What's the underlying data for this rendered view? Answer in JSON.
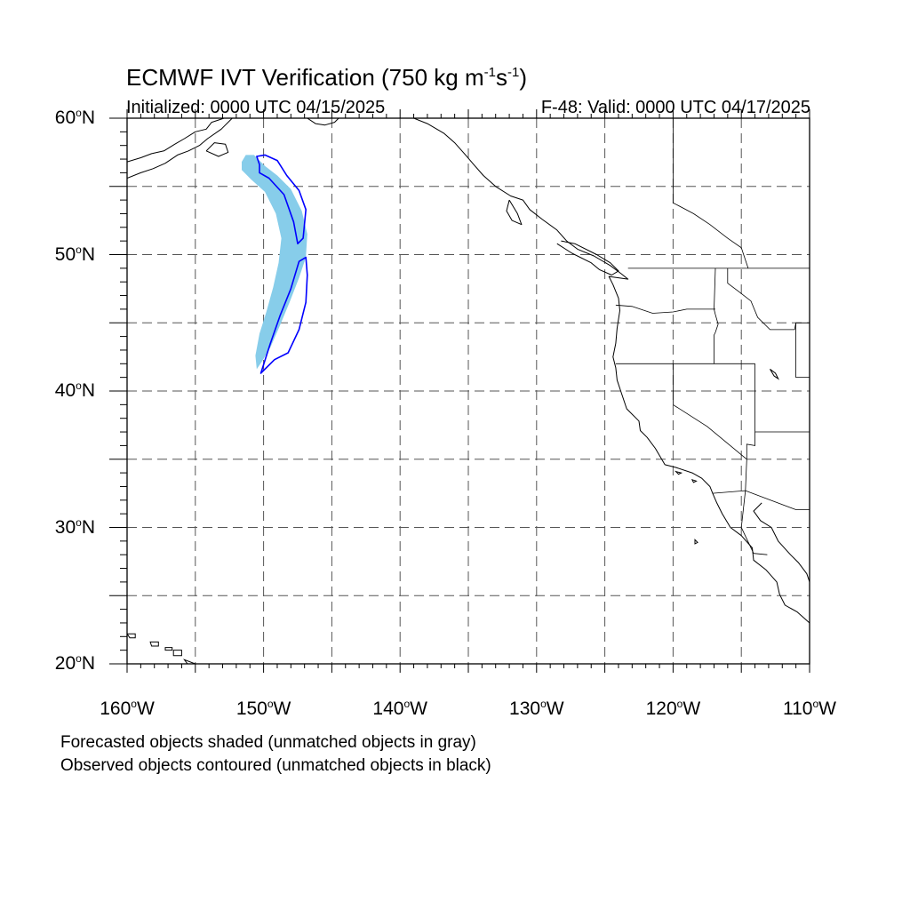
{
  "header": {
    "title_main": "ECMWF IVT Verification (750 kg m",
    "title_sup1": "-1",
    "title_mid": "s",
    "title_sup2": "-1",
    "title_end": ")",
    "initialized": "Initialized: 0000 UTC 04/15/2025",
    "valid": "F-48: Valid: 0000 UTC 04/17/2025"
  },
  "axes": {
    "lat_ticks": [
      {
        "deg": "60",
        "hemi": "N"
      },
      {
        "deg": "50",
        "hemi": "N"
      },
      {
        "deg": "40",
        "hemi": "N"
      },
      {
        "deg": "30",
        "hemi": "N"
      },
      {
        "deg": "20",
        "hemi": "N"
      }
    ],
    "lon_ticks": [
      {
        "deg": "160",
        "hemi": "W"
      },
      {
        "deg": "150",
        "hemi": "W"
      },
      {
        "deg": "140",
        "hemi": "W"
      },
      {
        "deg": "130",
        "hemi": "W"
      },
      {
        "deg": "120",
        "hemi": "W"
      },
      {
        "deg": "110",
        "hemi": "W"
      }
    ],
    "lon_range": [
      -160,
      -110
    ],
    "lat_range": [
      20,
      60
    ],
    "grid": "dashed every 5 degrees"
  },
  "map_data": {
    "forecast_object_color": "#87cdea",
    "observed_contour_color": "#0000ff",
    "forecast_object": [
      [
        -151.6,
        56.8
      ],
      [
        -151.3,
        57.3
      ],
      [
        -150.7,
        57.3
      ],
      [
        -149.9,
        56.5
      ],
      [
        -149.0,
        55.8
      ],
      [
        -148.0,
        54.8
      ],
      [
        -147.2,
        53.2
      ],
      [
        -146.8,
        51.5
      ],
      [
        -146.9,
        49.8
      ],
      [
        -147.4,
        48.3
      ],
      [
        -148.1,
        46.5
      ],
      [
        -148.8,
        44.8
      ],
      [
        -149.5,
        43.2
      ],
      [
        -150.1,
        42.2
      ],
      [
        -150.5,
        41.6
      ],
      [
        -150.6,
        42.6
      ],
      [
        -150.3,
        44.2
      ],
      [
        -149.8,
        45.8
      ],
      [
        -149.3,
        47.6
      ],
      [
        -148.9,
        49.4
      ],
      [
        -148.7,
        51.2
      ],
      [
        -149.1,
        53.0
      ],
      [
        -149.9,
        54.6
      ],
      [
        -150.9,
        55.5
      ],
      [
        -151.6,
        56.2
      ]
    ],
    "observed_north": [
      [
        -150.3,
        56.6
      ],
      [
        -150.5,
        57.2
      ],
      [
        -149.9,
        57.3
      ],
      [
        -149.0,
        56.9
      ],
      [
        -148.3,
        55.8
      ],
      [
        -147.4,
        54.7
      ],
      [
        -146.9,
        53.3
      ],
      [
        -147.1,
        51.2
      ],
      [
        -147.5,
        50.8
      ],
      [
        -147.8,
        52.4
      ],
      [
        -148.5,
        54.4
      ],
      [
        -149.6,
        55.6
      ],
      [
        -150.3,
        56.0
      ]
    ],
    "observed_south": [
      [
        -150.2,
        41.3
      ],
      [
        -149.2,
        42.3
      ],
      [
        -148.2,
        42.8
      ],
      [
        -147.4,
        44.5
      ],
      [
        -146.9,
        46.5
      ],
      [
        -146.8,
        48.5
      ],
      [
        -146.9,
        49.8
      ],
      [
        -147.4,
        49.5
      ],
      [
        -148.0,
        47.5
      ],
      [
        -148.8,
        45.5
      ],
      [
        -149.5,
        43.5
      ],
      [
        -150.2,
        41.3
      ]
    ],
    "coastlines": [
      [
        [
          -160,
          56.8
        ],
        [
          -159,
          57.1
        ],
        [
          -158.2,
          57.4
        ],
        [
          -157.3,
          57.6
        ],
        [
          -156.5,
          58.1
        ],
        [
          -155.8,
          58.5
        ],
        [
          -155.0,
          59.0
        ],
        [
          -154.2,
          59.2
        ],
        [
          -153.8,
          59.7
        ],
        [
          -152.9,
          60.0
        ]
      ],
      [
        [
          -160,
          55.6
        ],
        [
          -159,
          56.0
        ],
        [
          -158.1,
          56.3
        ],
        [
          -157.2,
          56.7
        ],
        [
          -156.3,
          57.3
        ],
        [
          -155.5,
          57.6
        ],
        [
          -154.7,
          58.0
        ],
        [
          -154.1,
          58.5
        ],
        [
          -153.1,
          59.2
        ],
        [
          -152.3,
          60.0
        ]
      ],
      [
        [
          -154.2,
          57.6
        ],
        [
          -153.3,
          57.2
        ],
        [
          -152.6,
          57.5
        ],
        [
          -152.8,
          58.1
        ],
        [
          -153.6,
          58.2
        ],
        [
          -154.2,
          57.6
        ]
      ],
      [
        [
          -139.0,
          60.0
        ],
        [
          -138.0,
          59.6
        ],
        [
          -136.8,
          58.9
        ],
        [
          -136.0,
          58.2
        ],
        [
          -135.2,
          57.3
        ],
        [
          -134.6,
          56.6
        ],
        [
          -133.9,
          55.8
        ],
        [
          -133.0,
          55.0
        ],
        [
          -131.9,
          54.3
        ],
        [
          -131.0,
          54.0
        ],
        [
          -130.5,
          53.3
        ],
        [
          -129.6,
          52.6
        ],
        [
          -128.5,
          51.8
        ],
        [
          -127.8,
          51.0
        ],
        [
          -127.0,
          50.4
        ],
        [
          -125.8,
          49.9
        ],
        [
          -124.6,
          49.2
        ],
        [
          -123.8,
          48.6
        ],
        [
          -123.3,
          48.2
        ],
        [
          -124.7,
          48.4
        ],
        [
          -124.4,
          47.8
        ],
        [
          -124.0,
          46.8
        ],
        [
          -123.9,
          45.9
        ],
        [
          -124.1,
          44.6
        ],
        [
          -124.2,
          43.5
        ],
        [
          -124.4,
          42.5
        ],
        [
          -124.2,
          41.7
        ],
        [
          -124.1,
          40.8
        ],
        [
          -123.8,
          39.9
        ],
        [
          -123.4,
          38.7
        ],
        [
          -122.5,
          37.8
        ],
        [
          -122.4,
          37.1
        ],
        [
          -121.9,
          36.6
        ],
        [
          -121.3,
          35.8
        ],
        [
          -120.6,
          34.6
        ],
        [
          -119.8,
          34.4
        ],
        [
          -118.6,
          34.0
        ],
        [
          -117.9,
          33.6
        ],
        [
          -117.3,
          33.0
        ],
        [
          -117.1,
          32.5
        ],
        [
          -116.8,
          31.8
        ],
        [
          -116.4,
          31.0
        ],
        [
          -115.8,
          30.0
        ],
        [
          -115.0,
          29.4
        ],
        [
          -114.2,
          28.5
        ],
        [
          -114.1,
          27.6
        ],
        [
          -113.2,
          26.9
        ],
        [
          -112.4,
          26.0
        ],
        [
          -112.2,
          25.1
        ],
        [
          -111.8,
          24.3
        ],
        [
          -110.9,
          23.8
        ],
        [
          -110.0,
          23.0
        ]
      ],
      [
        [
          -113.5,
          31.8
        ],
        [
          -114.1,
          31.2
        ],
        [
          -113.6,
          30.5
        ],
        [
          -112.8,
          30.0
        ],
        [
          -112.3,
          29.0
        ],
        [
          -111.4,
          28.0
        ],
        [
          -110.8,
          27.4
        ],
        [
          -110.2,
          26.6
        ],
        [
          -110.0,
          26.0
        ]
      ],
      [
        [
          -128.5,
          50.8
        ],
        [
          -127.4,
          50.1
        ],
        [
          -126.0,
          49.4
        ],
        [
          -125.4,
          48.9
        ],
        [
          -124.5,
          48.5
        ],
        [
          -124.0,
          48.8
        ],
        [
          -124.6,
          49.4
        ],
        [
          -125.6,
          50.0
        ],
        [
          -127.2,
          50.8
        ],
        [
          -128.2,
          51.0
        ]
      ],
      [
        [
          -132.0,
          54.0
        ],
        [
          -132.2,
          53.2
        ],
        [
          -131.8,
          52.5
        ],
        [
          -131.1,
          52.2
        ],
        [
          -131.4,
          53.0
        ],
        [
          -132.0,
          54.0
        ]
      ],
      [
        [
          -146.8,
          60.0
        ],
        [
          -146.2,
          59.6
        ],
        [
          -145.5,
          59.5
        ],
        [
          -144.8,
          59.7
        ],
        [
          -144.5,
          60.0
        ]
      ],
      [
        [
          -110.0,
          60.0
        ],
        [
          -109.6,
          59.6
        ],
        [
          -110.0,
          59.4
        ]
      ]
    ],
    "lakes": [
      [
        [
          -112.9,
          41.6
        ],
        [
          -112.5,
          41.3
        ],
        [
          -112.3,
          40.9
        ],
        [
          -112.6,
          41.1
        ],
        [
          -112.9,
          41.6
        ]
      ]
    ],
    "islands": [
      [
        [
          -160.0,
          22.2
        ],
        [
          -159.4,
          22.2
        ],
        [
          -159.4,
          21.9
        ],
        [
          -159.8,
          21.9
        ],
        [
          -160.0,
          22.2
        ]
      ],
      [
        [
          -158.3,
          21.6
        ],
        [
          -157.7,
          21.6
        ],
        [
          -157.7,
          21.3
        ],
        [
          -158.2,
          21.3
        ],
        [
          -158.3,
          21.6
        ]
      ],
      [
        [
          -157.2,
          21.2
        ],
        [
          -156.7,
          21.2
        ],
        [
          -156.7,
          21.0
        ],
        [
          -157.2,
          21.0
        ],
        [
          -157.2,
          21.2
        ]
      ],
      [
        [
          -156.6,
          21.0
        ],
        [
          -156.0,
          21.0
        ],
        [
          -156.0,
          20.6
        ],
        [
          -156.6,
          20.6
        ],
        [
          -156.6,
          21.0
        ]
      ],
      [
        [
          -155.8,
          20.3
        ],
        [
          -155.0,
          20.0
        ],
        [
          -154.8,
          19.7
        ],
        [
          -155.5,
          19.9
        ],
        [
          -155.8,
          20.3
        ]
      ],
      [
        [
          -118.6,
          33.5
        ],
        [
          -118.3,
          33.4
        ],
        [
          -118.5,
          33.3
        ],
        [
          -118.6,
          33.5
        ]
      ],
      [
        [
          -118.4,
          29.1
        ],
        [
          -118.2,
          28.9
        ],
        [
          -118.4,
          28.8
        ],
        [
          -118.4,
          29.1
        ]
      ],
      [
        [
          -119.8,
          34.1
        ],
        [
          -119.4,
          34.0
        ],
        [
          -119.6,
          33.9
        ],
        [
          -119.8,
          34.1
        ]
      ]
    ],
    "boundaries": [
      [
        [
          -123.3,
          49.0
        ],
        [
          -110.0,
          49.0
        ]
      ],
      [
        [
          -124.2,
          46.3
        ],
        [
          -123.0,
          46.2
        ],
        [
          -121.5,
          45.7
        ],
        [
          -120.0,
          45.8
        ],
        [
          -119.0,
          46.0
        ],
        [
          -116.9,
          46.0
        ]
      ],
      [
        [
          -116.9,
          49.0
        ],
        [
          -117.0,
          46.0
        ],
        [
          -116.9,
          45.6
        ],
        [
          -116.7,
          44.9
        ],
        [
          -116.9,
          44.3
        ],
        [
          -117.0,
          44.1
        ],
        [
          -117.0,
          42.0
        ]
      ],
      [
        [
          -124.2,
          42.0
        ],
        [
          -117.0,
          42.0
        ],
        [
          -114.0,
          42.0
        ]
      ],
      [
        [
          -116.0,
          49.0
        ],
        [
          -116.0,
          47.9
        ],
        [
          -115.2,
          47.3
        ],
        [
          -114.3,
          46.6
        ],
        [
          -113.8,
          45.4
        ],
        [
          -112.9,
          44.5
        ],
        [
          -111.1,
          44.5
        ],
        [
          -111.0,
          45.0
        ],
        [
          -110.0,
          45.0
        ]
      ],
      [
        [
          -111.0,
          45.0
        ],
        [
          -111.0,
          41.0
        ],
        [
          -110.0,
          41.0
        ]
      ],
      [
        [
          -114.0,
          42.0
        ],
        [
          -114.0,
          37.0
        ],
        [
          -110.0,
          37.0
        ]
      ],
      [
        [
          -120.0,
          42.0
        ],
        [
          -120.0,
          39.0
        ],
        [
          -117.5,
          37.4
        ],
        [
          -114.6,
          35.0
        ],
        [
          -114.7,
          32.7
        ]
      ],
      [
        [
          -114.0,
          37.0
        ],
        [
          -114.0,
          36.0
        ],
        [
          -114.6,
          36.1
        ],
        [
          -114.6,
          35.0
        ]
      ],
      [
        [
          -117.1,
          32.5
        ],
        [
          -114.7,
          32.7
        ],
        [
          -111.0,
          31.3
        ],
        [
          -110.0,
          31.3
        ]
      ],
      [
        [
          -114.7,
          32.7
        ],
        [
          -115.0,
          30.0
        ],
        [
          -114.1,
          28.1
        ],
        [
          -113.1,
          28.0
        ]
      ],
      [
        [
          -120.0,
          60.0
        ],
        [
          -120.0,
          53.8
        ],
        [
          -118.5,
          53.0
        ],
        [
          -117.3,
          52.2
        ],
        [
          -116.0,
          51.2
        ],
        [
          -115.0,
          50.5
        ],
        [
          -114.5,
          49.0
        ]
      ]
    ]
  },
  "legend": {
    "line1": "Forecasted objects shaded (unmatched objects in gray)",
    "line2": "Observed objects contoured (unmatched objects in black)"
  }
}
